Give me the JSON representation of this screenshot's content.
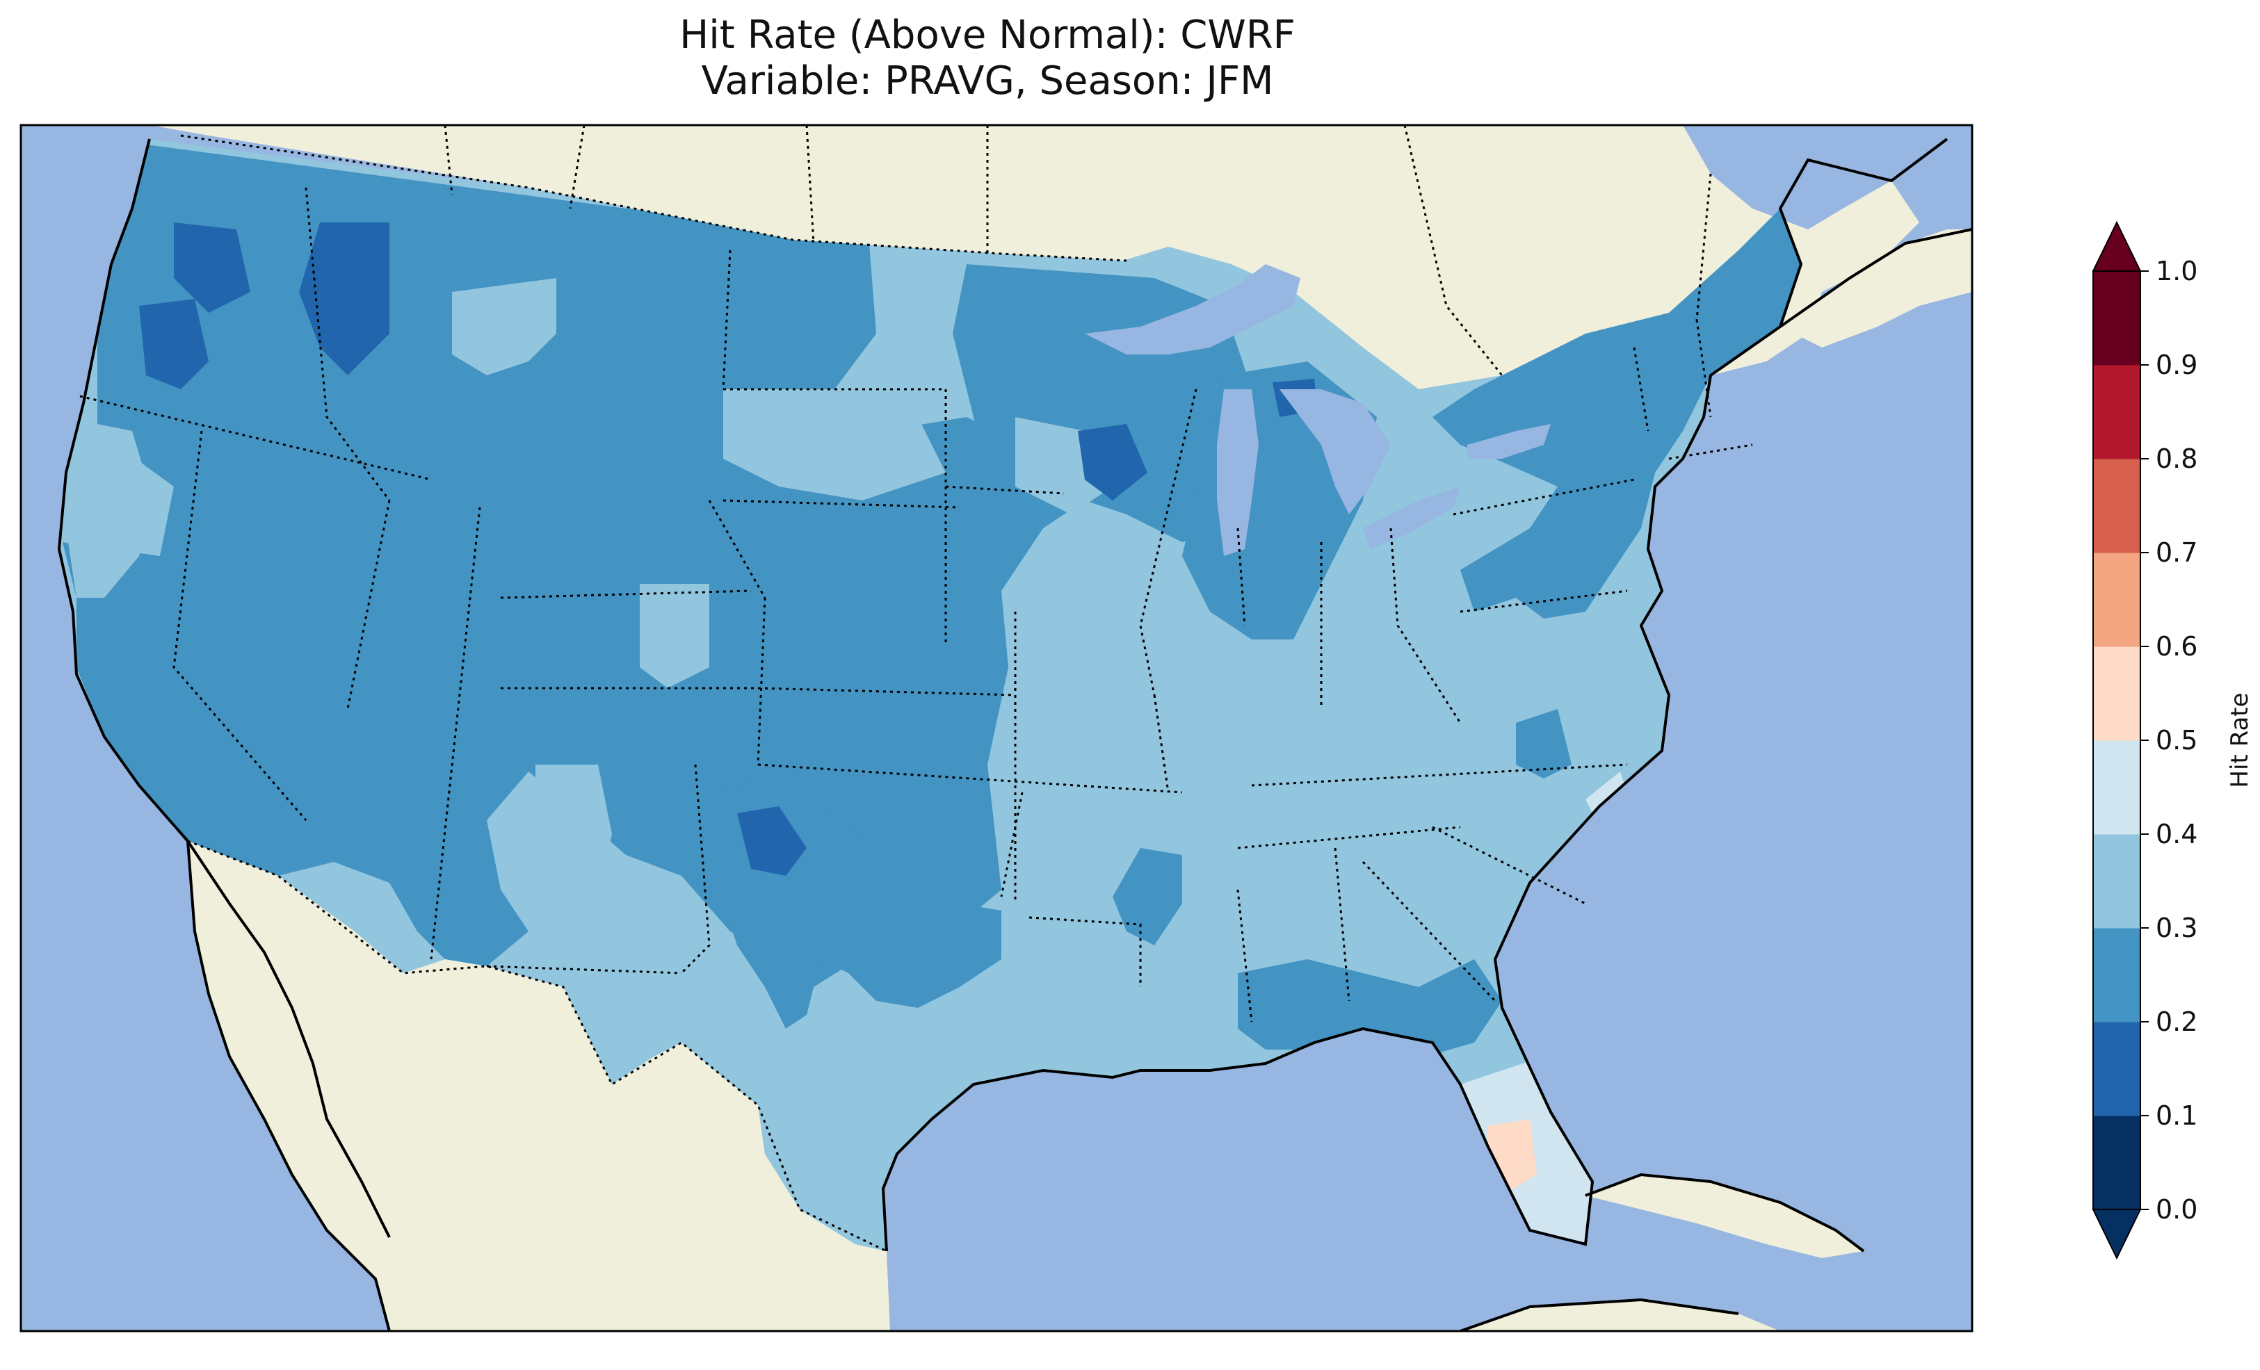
{
  "title": {
    "line1": "Hit Rate (Above Normal): CWRF",
    "line2": "Variable: PRAVG, Season: JFM"
  },
  "colors": {
    "ocean": "#97b6e1",
    "land": "#efefdb",
    "coast": "#000000"
  },
  "colorbar": {
    "label": "Hit Rate",
    "ticks": [
      "0.0",
      "0.1",
      "0.2",
      "0.3",
      "0.4",
      "0.5",
      "0.6",
      "0.7",
      "0.8",
      "0.9",
      "1.0"
    ],
    "levels": [
      {
        "range": "0.0-0.1",
        "color": "#053061"
      },
      {
        "range": "0.1-0.2",
        "color": "#2166ac"
      },
      {
        "range": "0.2-0.3",
        "color": "#4393c3"
      },
      {
        "range": "0.3-0.4",
        "color": "#92c5de"
      },
      {
        "range": "0.4-0.5",
        "color": "#d1e5f0"
      },
      {
        "range": "0.5-0.6",
        "color": "#fddbc7"
      },
      {
        "range": "0.6-0.7",
        "color": "#f4a582"
      },
      {
        "range": "0.7-0.8",
        "color": "#d6604d"
      },
      {
        "range": "0.8-0.9",
        "color": "#b2182b"
      },
      {
        "range": "0.9-1.0",
        "color": "#67001f"
      }
    ],
    "extend": "both"
  },
  "map": {
    "region": "Contiguous United States",
    "dominant_class": "0.2-0.3",
    "features": [
      "coastlines",
      "state borders",
      "country borders",
      "lakes"
    ]
  }
}
